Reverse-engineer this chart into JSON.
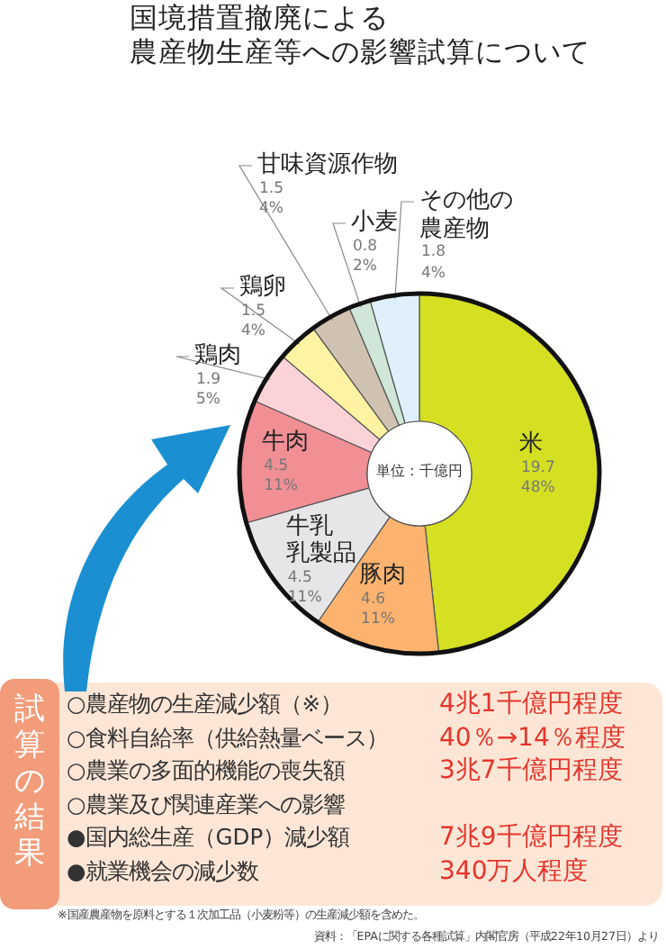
{
  "chart_data": {
    "type": "donut",
    "title": "国境措置撤廃による",
    "subtitle": "農産物生産等への影響試算について",
    "categories": [
      "米",
      "豚肉",
      "牛乳乳製品",
      "牛肉",
      "鶏肉",
      "鶏卵",
      "甘味資源作物",
      "小麦",
      "その他の農産物"
    ],
    "values": [
      19.7,
      4.6,
      4.5,
      4.5,
      1.9,
      1.5,
      1.5,
      0.8,
      1.8
    ],
    "value_labels": [
      "19.7\n48%",
      "4.6\n11%",
      "4.5\n11%",
      "4.5\n11%",
      "1.9\n5%",
      "1.5\n4%",
      "1.5\n4%",
      "0.8\n2%",
      "1.8\n4%"
    ],
    "colors": [
      "#d4e021",
      "#fbb36f",
      "#e6e6e8",
      "#f08f94",
      "#fbd3d6",
      "#fdf3a2",
      "#cfc2b0",
      "#cfe6d8",
      "#dff0fb"
    ],
    "annotations": [
      "単位：千億円",
      "試算の結果",
      "○農産物の生産減少額（※）",
      "4兆1千億円程度",
      "○食料自給率（供給熱量ベース）",
      "40％→14％程度",
      "○農業の多面的機能の喪失額",
      "3兆7千億円程度",
      "○農業及び関連産業への影響",
      "●国内総生産（GDP）減少額",
      "7兆9千億円程度",
      "●就業機会の減少数",
      "340万人程度",
      "※国産農産物を原料とする１次加工品（小麦粉等）の生産減少額を含めた。",
      "資料：「EPAに関する各種試算」内閣官房（平成22年10月27日）より"
    ]
  }
}
